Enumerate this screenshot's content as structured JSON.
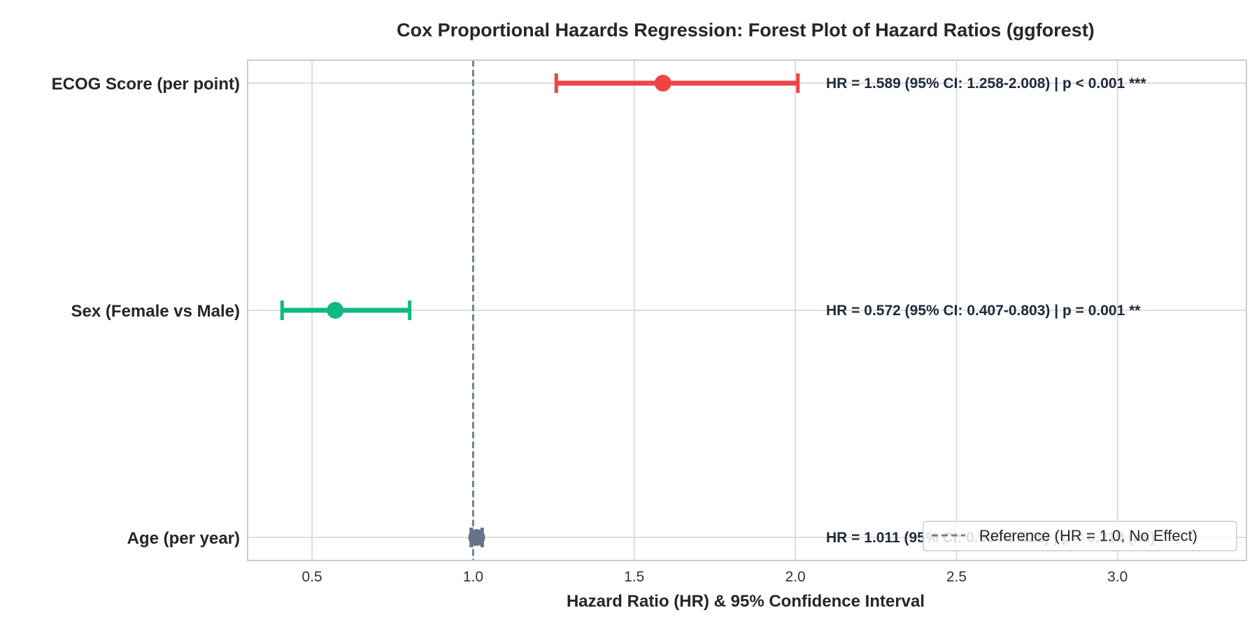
{
  "chart_data": {
    "type": "forest",
    "title": "Cox Proportional Hazards Regression: Forest Plot of Hazard Ratios (ggforest)",
    "xlabel": "Hazard Ratio (HR) & 95% Confidence Interval",
    "xlim": [
      0.3,
      3.4
    ],
    "xticks": [
      0.5,
      1.0,
      1.5,
      2.0,
      2.5,
      3.0
    ],
    "xtick_labels": [
      "0.5",
      "1.0",
      "1.5",
      "2.0",
      "2.5",
      "3.0"
    ],
    "grid": true,
    "reference_line": {
      "x": 1.0,
      "style": "dashed",
      "color": "#718096"
    },
    "legend": {
      "placement": "lower-right",
      "label": "Reference (HR = 1.0, No Effect)"
    },
    "series": [
      {
        "label": "ECOG Score (per point)",
        "hr": 1.589,
        "ci_low": 1.258,
        "ci_high": 2.008,
        "color": "#ef4444",
        "annotation": "HR = 1.589 (95% CI: 1.258-2.008) | p < 0.001 ***"
      },
      {
        "label": "Sex (Female vs Male)",
        "hr": 0.572,
        "ci_low": 0.407,
        "ci_high": 0.803,
        "color": "#10b981",
        "annotation": "HR = 0.572 (95% CI: 0.407-0.803) | p = 0.001 **"
      },
      {
        "label": "Age (per year)",
        "hr": 1.011,
        "ci_low": 0.994,
        "ci_high": 1.028,
        "color": "#64748b",
        "annotation": "HR = 1.011 (95% CI: 0.994-1.028) | p = 0.210 (ns)"
      }
    ]
  }
}
